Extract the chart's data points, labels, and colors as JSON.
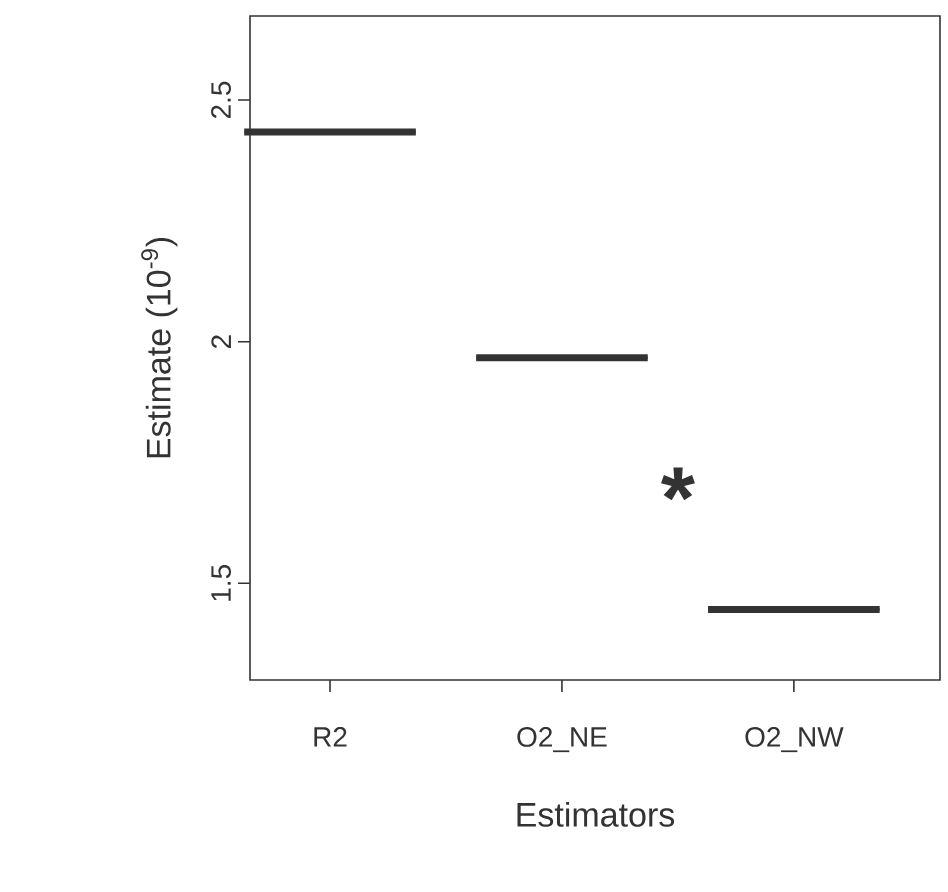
{
  "chart_data": {
    "type": "box",
    "xlabel": "Estimators",
    "ylabel": "Estimate (10$^{-9}$)",
    "categories": [
      "R2",
      "O2_NE",
      "O2_NW"
    ],
    "boxes": [
      {
        "low": 2.434,
        "q1": 2.434,
        "median": 2.434,
        "q3": 2.434,
        "high": 2.434
      },
      {
        "low": 1.967,
        "q1": 1.967,
        "median": 1.967,
        "q3": 1.967,
        "high": 1.967
      },
      {
        "low": 1.446,
        "q1": 1.446,
        "median": 1.446,
        "q3": 1.446,
        "high": 1.446
      }
    ],
    "color": "#333333",
    "ylim": [
      1.3,
      2.674
    ],
    "yticks": [
      1.5,
      2,
      2.5
    ],
    "annotations": [
      "*"
    ]
  }
}
